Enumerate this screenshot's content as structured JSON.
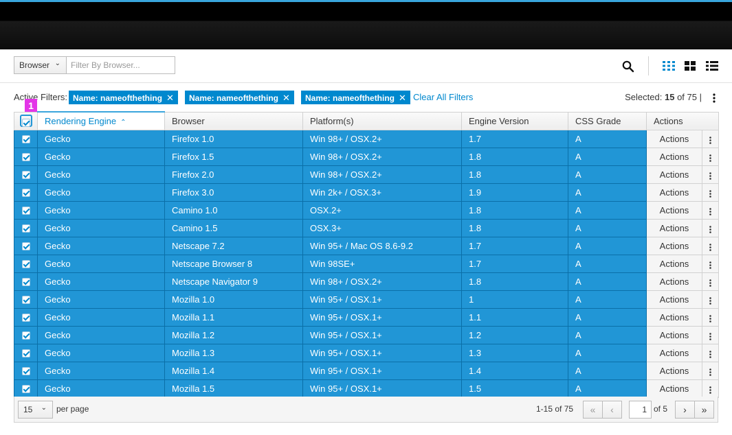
{
  "toolbar": {
    "filter_field": "Browser",
    "filter_placeholder": "Filter By Browser..."
  },
  "active_filters": {
    "label": "Active Filters:",
    "tags": [
      {
        "label": "Name: nameofthething"
      },
      {
        "label": "Name: nameofthething"
      },
      {
        "label": "Name: nameofthething"
      }
    ],
    "clear_all": "Clear All Filters",
    "selected_prefix": "Selected:",
    "selected_count": "15",
    "selected_of": "of 75",
    "separator": "|"
  },
  "badge": "1",
  "table": {
    "columns": [
      "Rendering Engine",
      "Browser",
      "Platform(s)",
      "Engine Version",
      "CSS Grade",
      "Actions"
    ],
    "sort_caret": "^",
    "action_label": "Actions",
    "rows": [
      {
        "engine": "Gecko",
        "browser": "Firefox 1.0",
        "platform": "Win 98+ / OSX.2+",
        "version": "1.7",
        "grade": "A"
      },
      {
        "engine": "Gecko",
        "browser": "Firefox 1.5",
        "platform": "Win 98+ / OSX.2+",
        "version": "1.8",
        "grade": "A"
      },
      {
        "engine": "Gecko",
        "browser": "Firefox 2.0",
        "platform": "Win 98+ / OSX.2+",
        "version": "1.8",
        "grade": "A"
      },
      {
        "engine": "Gecko",
        "browser": "Firefox 3.0",
        "platform": "Win 2k+ / OSX.3+",
        "version": "1.9",
        "grade": "A"
      },
      {
        "engine": "Gecko",
        "browser": "Camino 1.0",
        "platform": "OSX.2+",
        "version": "1.8",
        "grade": "A"
      },
      {
        "engine": "Gecko",
        "browser": "Camino 1.5",
        "platform": "OSX.3+",
        "version": "1.8",
        "grade": "A"
      },
      {
        "engine": "Gecko",
        "browser": "Netscape 7.2",
        "platform": "Win 95+ / Mac OS 8.6-9.2",
        "version": "1.7",
        "grade": "A"
      },
      {
        "engine": "Gecko",
        "browser": "Netscape Browser 8",
        "platform": "Win 98SE+",
        "version": "1.7",
        "grade": "A"
      },
      {
        "engine": "Gecko",
        "browser": "Netscape Navigator 9",
        "platform": "Win 98+ / OSX.2+",
        "version": "1.8",
        "grade": "A"
      },
      {
        "engine": "Gecko",
        "browser": "Mozilla 1.0",
        "platform": "Win 95+ / OSX.1+",
        "version": "1",
        "grade": "A"
      },
      {
        "engine": "Gecko",
        "browser": "Mozilla 1.1",
        "platform": "Win 95+ / OSX.1+",
        "version": "1.1",
        "grade": "A"
      },
      {
        "engine": "Gecko",
        "browser": "Mozilla 1.2",
        "platform": "Win 95+ / OSX.1+",
        "version": "1.2",
        "grade": "A"
      },
      {
        "engine": "Gecko",
        "browser": "Mozilla 1.3",
        "platform": "Win 95+ / OSX.1+",
        "version": "1.3",
        "grade": "A"
      },
      {
        "engine": "Gecko",
        "browser": "Mozilla 1.4",
        "platform": "Win 95+ / OSX.1+",
        "version": "1.4",
        "grade": "A"
      },
      {
        "engine": "Gecko",
        "browser": "Mozilla 1.5",
        "platform": "Win 95+ / OSX.1+",
        "version": "1.5",
        "grade": "A"
      }
    ]
  },
  "pager": {
    "per_page": "15",
    "per_page_label": "per page",
    "range": "1-15 of 75",
    "current_page": "1",
    "of_pages": "of 5"
  },
  "colors": {
    "accent": "#0088ce",
    "row_selected": "#2196d6",
    "top_bar_border": "#39a5dc",
    "badge": "#e335e7"
  },
  "icons": {
    "search": "search-icon",
    "grid_view": "card-view-icon",
    "tile_view": "tile-view-icon",
    "list_view": "list-view-icon",
    "kebab": "kebab-icon"
  }
}
